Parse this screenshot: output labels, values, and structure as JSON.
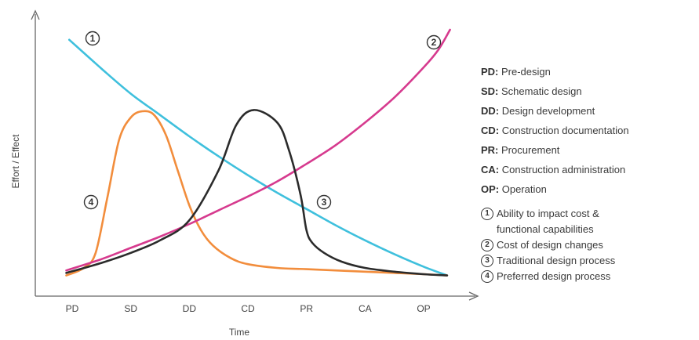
{
  "chart_data": {
    "type": "line",
    "title": "",
    "xlabel": "Time",
    "ylabel": "Effort / Effect",
    "categories": [
      "PD",
      "SD",
      "DD",
      "CD",
      "PR",
      "CA",
      "OP"
    ],
    "y_ticks_shown": false,
    "grid": false,
    "legend_position": "right",
    "abbreviations": [
      {
        "key": "PD:",
        "text": "Pre-design"
      },
      {
        "key": "SD:",
        "text": "Schematic design"
      },
      {
        "key": "DD:",
        "text": "Design development"
      },
      {
        "key": "CD:",
        "text": "Construction documentation"
      },
      {
        "key": "PR:",
        "text": "Procurement"
      },
      {
        "key": "CA:",
        "text": "Construction administration"
      },
      {
        "key": "OP:",
        "text": "Operation"
      }
    ],
    "series": [
      {
        "marker": "1",
        "name": "Ability to impact cost &\nfunctional capabilities",
        "color": "#3fc0dd",
        "x": [
          -0.05,
          0.5,
          1,
          1.5,
          2,
          2.5,
          3,
          3.5,
          4,
          4.5,
          5,
          5.5,
          6,
          6.4
        ],
        "y": [
          0.96,
          0.845,
          0.745,
          0.66,
          0.575,
          0.495,
          0.42,
          0.35,
          0.285,
          0.22,
          0.16,
          0.105,
          0.055,
          0.02
        ]
      },
      {
        "marker": "2",
        "name": "Cost of design changes",
        "color": "#d63a8e",
        "x": [
          -0.1,
          0.5,
          1,
          1.5,
          2,
          2.5,
          3,
          3.5,
          4,
          4.5,
          5,
          5.5,
          6,
          6.25,
          6.45
        ],
        "y": [
          0.04,
          0.085,
          0.13,
          0.175,
          0.225,
          0.28,
          0.335,
          0.395,
          0.465,
          0.54,
          0.63,
          0.73,
          0.85,
          0.92,
          1.0
        ]
      },
      {
        "marker": "3",
        "name": "Traditional design process",
        "color": "#2b2b2b",
        "x": [
          -0.1,
          0.5,
          1,
          1.5,
          2,
          2.5,
          2.8,
          3.1,
          3.5,
          3.7,
          3.9,
          4.0,
          4.1,
          4.3,
          4.6,
          5,
          5.5,
          6,
          6.4
        ],
        "y": [
          0.03,
          0.07,
          0.11,
          0.16,
          0.24,
          0.44,
          0.62,
          0.68,
          0.63,
          0.52,
          0.34,
          0.2,
          0.15,
          0.11,
          0.075,
          0.05,
          0.035,
          0.025,
          0.02
        ]
      },
      {
        "marker": "4",
        "name": "Preferred design process",
        "color": "#f28d3c",
        "x": [
          -0.1,
          0.2,
          0.4,
          0.6,
          0.8,
          1,
          1.2,
          1.4,
          1.6,
          1.8,
          2,
          2.2,
          2.4,
          2.7,
          3,
          3.5,
          4,
          5,
          6,
          6.4
        ],
        "y": [
          0.02,
          0.05,
          0.11,
          0.33,
          0.56,
          0.65,
          0.675,
          0.66,
          0.58,
          0.44,
          0.3,
          0.2,
          0.14,
          0.09,
          0.065,
          0.05,
          0.045,
          0.035,
          0.025,
          0.02
        ]
      }
    ]
  }
}
